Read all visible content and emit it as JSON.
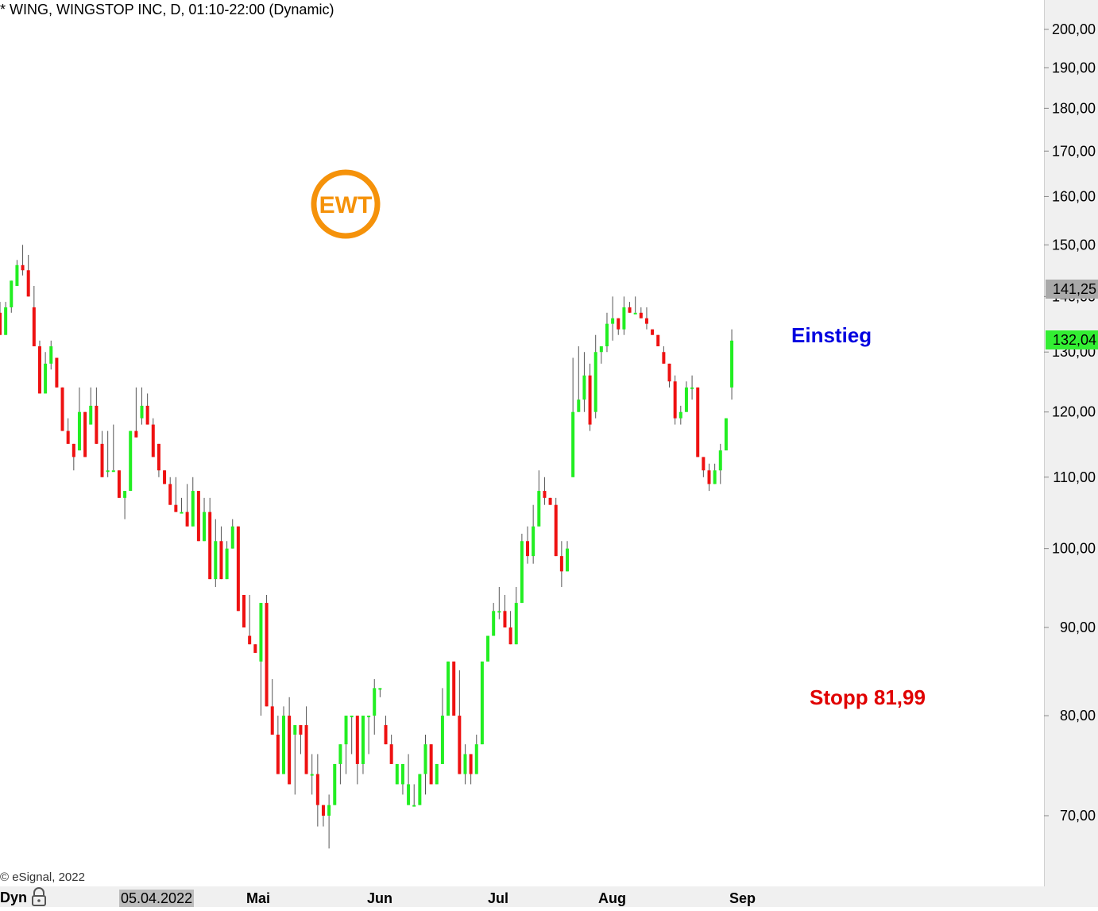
{
  "title": "* WING, WINGSTOP INC, D, 01:10-22:00 (Dynamic)",
  "copyright": "© eSignal, 2022",
  "annotations": {
    "entry": "Einstieg",
    "stop": "Stopp 81,99"
  },
  "logo_text": "EWT",
  "time_axis": {
    "mode_label": "Dyn",
    "lock_icon": "lock-icon",
    "cursor_date": "05.04.2022",
    "months": [
      "Mai",
      "Jun",
      "Jul",
      "Aug",
      "Sep"
    ]
  },
  "price_badges": {
    "prev_level": "141,25",
    "current": "132,04"
  },
  "colors": {
    "up": "#22ee22",
    "down": "#ee1111",
    "entry": "#0000e0",
    "stop": "#e00000",
    "logo": "#f5920a"
  },
  "chart_data": {
    "type": "candlestick",
    "title": "* WING, WINGSTOP INC, D, 01:10-22:00 (Dynamic)",
    "y_scale": "log",
    "ylim": [
      64,
      208
    ],
    "y_ticks": [
      "200,00",
      "190,00",
      "180,00",
      "170,00",
      "160,00",
      "150,00",
      "140,00",
      "130,00",
      "120,00",
      "110,00",
      "100,00",
      "90,00",
      "80,00",
      "70,00"
    ],
    "y_tick_values": [
      200,
      190,
      180,
      170,
      160,
      150,
      140,
      130,
      120,
      110,
      100,
      90,
      80,
      70
    ],
    "x_labels": [
      "05.04.2022",
      "Mai",
      "Jun",
      "Jul",
      "Aug",
      "Sep"
    ],
    "series": [
      {
        "values": [
          [
            137,
            139,
            137,
            133
          ],
          [
            133,
            139,
            133,
            138
          ],
          [
            138,
            143,
            137,
            143
          ],
          [
            142,
            147,
            142,
            146
          ],
          [
            146,
            150,
            144,
            145
          ],
          [
            145,
            148,
            140,
            140
          ],
          [
            138,
            142,
            131,
            131
          ],
          [
            131,
            132,
            123,
            123
          ],
          [
            123,
            130,
            123,
            128
          ],
          [
            128,
            132,
            127,
            131
          ],
          [
            129,
            128,
            124,
            124
          ],
          [
            124,
            123,
            117,
            117
          ],
          [
            117,
            119,
            115,
            115
          ],
          [
            115,
            111,
            111,
            113
          ],
          [
            114,
            124,
            118,
            120
          ],
          [
            120,
            119,
            113,
            113
          ],
          [
            118,
            124,
            118,
            121
          ],
          [
            121,
            124,
            115,
            115
          ],
          [
            115,
            117,
            110,
            110
          ],
          [
            111,
            117,
            110,
            111
          ],
          [
            111,
            118,
            111,
            111
          ],
          [
            111,
            108,
            107,
            107
          ],
          [
            107,
            104,
            107,
            108
          ],
          [
            108,
            113,
            108,
            117
          ],
          [
            117,
            124,
            116,
            116
          ],
          [
            119,
            124,
            118,
            121
          ],
          [
            121,
            123,
            118,
            118
          ],
          [
            118,
            119,
            113,
            113
          ],
          [
            115,
            112,
            110,
            111
          ],
          [
            111,
            109,
            109,
            109
          ],
          [
            109,
            110,
            106,
            106
          ],
          [
            106,
            110,
            105,
            105
          ],
          [
            105,
            107,
            105,
            105
          ],
          [
            105,
            109,
            103,
            103
          ],
          [
            103,
            110,
            103,
            108
          ],
          [
            108,
            107,
            101,
            101
          ],
          [
            101,
            107,
            101,
            105
          ],
          [
            105,
            107,
            96,
            96
          ],
          [
            96,
            104,
            95,
            101
          ],
          [
            101,
            103,
            96,
            96
          ],
          [
            96,
            101,
            96,
            100
          ],
          [
            100,
            104,
            100,
            103
          ],
          [
            103,
            102,
            92,
            92
          ],
          [
            94,
            93,
            90,
            90
          ],
          [
            89,
            94,
            88,
            88
          ],
          [
            88,
            88,
            87,
            87
          ],
          [
            86,
            93,
            80,
            93
          ],
          [
            93,
            94,
            81,
            81
          ],
          [
            81,
            84,
            78,
            78
          ],
          [
            78,
            80,
            74,
            74
          ],
          [
            74,
            81,
            74,
            80
          ],
          [
            80,
            82,
            73,
            73
          ],
          [
            78,
            79,
            72,
            79
          ],
          [
            79,
            78,
            76,
            78
          ],
          [
            79,
            81,
            74,
            74
          ],
          [
            74,
            76,
            72,
            74
          ],
          [
            74,
            76,
            69,
            71
          ],
          [
            71,
            69,
            70,
            70
          ],
          [
            70,
            72,
            67,
            71
          ],
          [
            71,
            74,
            71,
            75
          ],
          [
            75,
            77,
            73,
            77
          ],
          [
            77,
            80,
            74,
            80
          ],
          [
            80,
            80,
            76,
            80
          ],
          [
            80,
            79,
            73,
            75
          ],
          [
            75,
            80,
            74,
            80
          ],
          [
            80,
            79,
            76,
            80
          ],
          [
            80,
            84,
            78,
            83
          ],
          [
            83,
            82,
            82,
            83
          ],
          [
            79,
            80,
            77,
            77
          ],
          [
            77,
            78,
            75,
            75
          ],
          [
            73,
            75,
            73,
            75
          ],
          [
            73,
            75,
            72,
            75
          ],
          [
            71,
            76,
            71,
            73
          ],
          [
            71,
            73,
            71,
            71
          ],
          [
            71,
            74,
            71,
            74
          ],
          [
            74,
            78,
            72,
            77
          ],
          [
            77,
            77,
            73,
            73
          ],
          [
            73,
            75,
            74,
            75
          ],
          [
            75,
            83,
            75,
            80
          ],
          [
            80,
            86,
            80,
            86
          ],
          [
            86,
            86,
            80,
            80
          ],
          [
            80,
            85,
            74,
            74
          ],
          [
            74,
            77,
            73,
            76
          ],
          [
            76,
            75,
            73,
            74
          ],
          [
            74,
            78,
            74,
            77
          ],
          [
            77,
            86,
            78,
            86
          ],
          [
            86,
            89,
            87,
            89
          ],
          [
            89,
            93,
            89,
            92
          ],
          [
            92,
            95,
            91,
            92
          ],
          [
            92,
            94,
            91,
            90
          ],
          [
            90,
            92,
            88,
            88
          ],
          [
            88,
            95,
            88,
            93
          ],
          [
            93,
            102,
            94,
            101
          ],
          [
            101,
            103,
            98,
            99
          ],
          [
            99,
            106,
            98,
            103
          ],
          [
            103,
            111,
            103,
            108
          ],
          [
            108,
            110,
            106,
            107
          ],
          [
            107,
            107,
            106,
            106
          ],
          [
            106,
            107,
            99,
            99
          ],
          [
            99,
            101,
            95,
            97
          ],
          [
            97,
            101,
            97,
            100
          ],
          [
            110,
            129,
            110,
            120
          ],
          [
            120,
            131,
            120,
            122
          ],
          [
            122,
            130,
            120,
            126
          ],
          [
            126,
            128,
            117,
            118
          ],
          [
            120,
            133,
            119,
            130
          ],
          [
            130,
            131,
            128,
            131
          ],
          [
            131,
            137,
            130,
            135
          ],
          [
            135,
            140,
            132,
            136
          ],
          [
            136,
            136,
            133,
            134
          ],
          [
            134,
            140,
            133,
            138
          ],
          [
            138,
            139,
            138,
            137
          ],
          [
            137,
            140,
            137,
            137
          ],
          [
            137,
            138,
            136,
            136
          ],
          [
            136,
            138,
            134,
            135
          ],
          [
            134,
            133,
            133,
            133
          ],
          [
            133,
            132,
            131,
            131
          ],
          [
            130,
            131,
            128,
            128
          ],
          [
            128,
            125,
            124,
            125
          ],
          [
            125,
            126,
            118,
            119
          ],
          [
            119,
            121,
            118,
            120
          ],
          [
            120,
            125,
            120,
            124
          ],
          [
            124,
            126,
            122,
            124
          ],
          [
            124,
            124,
            113,
            113
          ],
          [
            113,
            113,
            110,
            111
          ],
          [
            111,
            112,
            108,
            109
          ],
          [
            109,
            112,
            110,
            111
          ],
          [
            111,
            115,
            109,
            114
          ],
          [
            114,
            119,
            116,
            119
          ],
          [
            124,
            134,
            122,
            132
          ]
        ]
      }
    ]
  }
}
